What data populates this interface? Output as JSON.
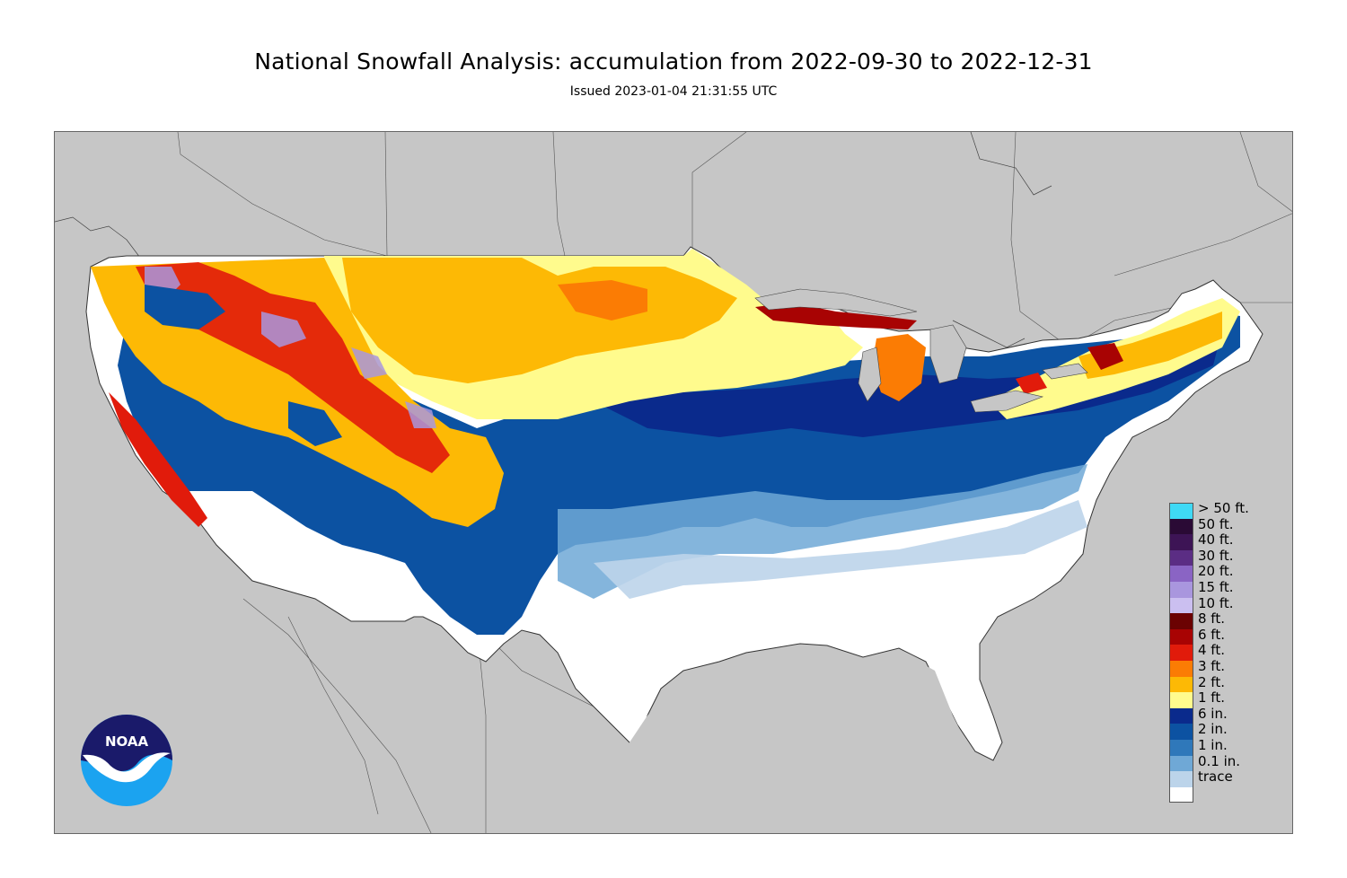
{
  "title": "National Snowfall Analysis: accumulation from 2022-09-30 to 2022-12-31",
  "subtitle": "Issued 2023-01-04 21:31:55 UTC",
  "legend": [
    {
      "label": "> 50 ft.",
      "color": "#3fd9f5"
    },
    {
      "label": "50 ft.",
      "color": "#2a0a35"
    },
    {
      "label": "40 ft.",
      "color": "#3d1455"
    },
    {
      "label": "30 ft.",
      "color": "#5b2d84"
    },
    {
      "label": "20 ft.",
      "color": "#8a64c4"
    },
    {
      "label": "15 ft.",
      "color": "#a996de"
    },
    {
      "label": "10 ft.",
      "color": "#cbbff0"
    },
    {
      "label": "8 ft.",
      "color": "#6b0202"
    },
    {
      "label": "6 ft.",
      "color": "#a80303"
    },
    {
      "label": "4 ft.",
      "color": "#e11b0b"
    },
    {
      "label": "3 ft.",
      "color": "#fb7c04"
    },
    {
      "label": "2 ft.",
      "color": "#fdb905"
    },
    {
      "label": "1 ft.",
      "color": "#fffb8d"
    },
    {
      "label": "6 in.",
      "color": "#0a2a8c"
    },
    {
      "label": "2 in.",
      "color": "#0c52a2"
    },
    {
      "label": "1 in.",
      "color": "#2f78ba"
    },
    {
      "label": "0.1 in.",
      "color": "#6fa8d6"
    },
    {
      "label": "trace",
      "color": "#bcd4ea"
    },
    {
      "label": "",
      "color": "#ffffff"
    }
  ],
  "logo": {
    "text": "NOAA",
    "icon": "noaa-logo"
  },
  "colors": {
    "land_outside": "#c6c6c6",
    "trace": "#ffffff"
  }
}
